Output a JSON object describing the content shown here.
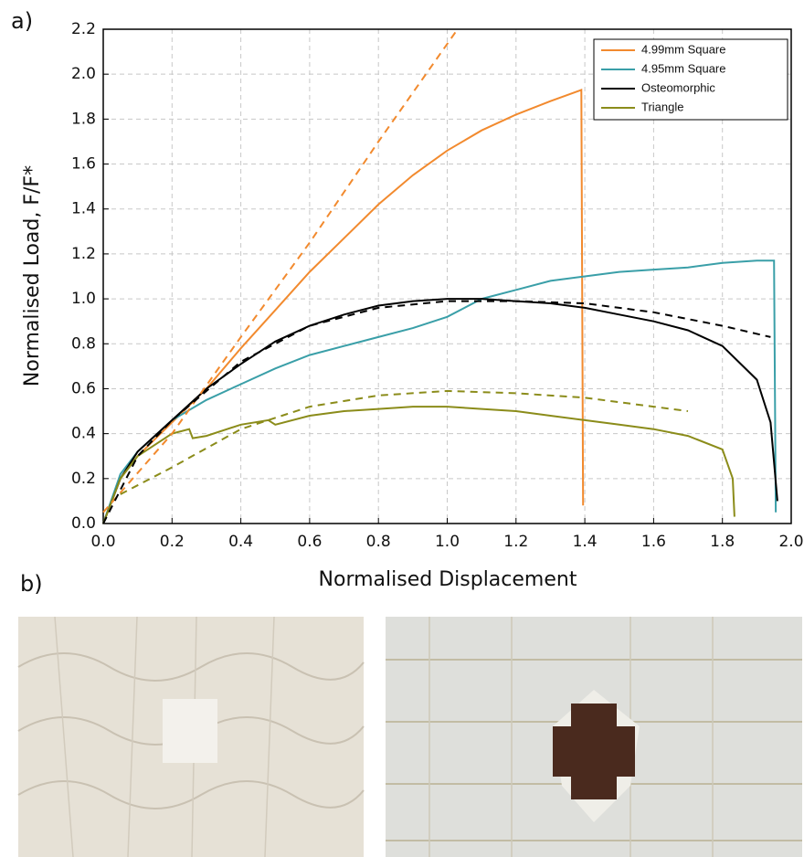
{
  "panels": {
    "a": "a)",
    "b": "b)"
  },
  "chart_data": {
    "type": "line",
    "xlabel": "Normalised Displacement",
    "ylabel": "Normalised Load, F/F*",
    "xlim": [
      0,
      2
    ],
    "ylim": [
      0,
      2.2
    ],
    "xticks": [
      {
        "value": 0,
        "label": "0.0"
      },
      0.2,
      0.4,
      0.6,
      0.8,
      {
        "value": 1,
        "label": "1.0"
      },
      1.2,
      1.4,
      1.6,
      1.8,
      {
        "value": 2,
        "label": "2.0"
      }
    ],
    "yticks": [
      {
        "value": 0,
        "label": "0.0"
      },
      0.2,
      0.4,
      0.6,
      0.8,
      {
        "value": 1,
        "label": "1.0"
      },
      1.2,
      1.4,
      1.6,
      1.8,
      {
        "value": 2,
        "label": "2.0"
      },
      2.2
    ],
    "grid": true,
    "legend": "upper right",
    "series": [
      {
        "name": "4.99mm Square",
        "color": "#f28a2e",
        "x": [
          0,
          0.05,
          0.1,
          0.2,
          0.3,
          0.4,
          0.5,
          0.6,
          0.7,
          0.8,
          0.9,
          1.0,
          1.1,
          1.2,
          1.3,
          1.39,
          1.395
        ],
        "values": [
          0,
          0.2,
          0.3,
          0.45,
          0.6,
          0.78,
          0.95,
          1.12,
          1.27,
          1.42,
          1.55,
          1.66,
          1.75,
          1.82,
          1.88,
          1.93,
          0.08
        ]
      },
      {
        "name": "4.95mm Square",
        "color": "#3a9fa8",
        "x": [
          0,
          0.05,
          0.1,
          0.2,
          0.3,
          0.4,
          0.5,
          0.6,
          0.7,
          0.8,
          0.9,
          1.0,
          1.1,
          1.2,
          1.3,
          1.4,
          1.5,
          1.6,
          1.7,
          1.8,
          1.9,
          1.95,
          1.955
        ],
        "values": [
          0,
          0.22,
          0.32,
          0.46,
          0.55,
          0.62,
          0.69,
          0.75,
          0.79,
          0.83,
          0.87,
          0.92,
          1.0,
          1.04,
          1.08,
          1.1,
          1.12,
          1.13,
          1.14,
          1.16,
          1.17,
          1.17,
          0.05
        ]
      },
      {
        "name": "Osteomorphic",
        "color": "#000000",
        "x": [
          0,
          0.05,
          0.1,
          0.2,
          0.3,
          0.4,
          0.5,
          0.6,
          0.7,
          0.8,
          0.9,
          1.0,
          1.1,
          1.2,
          1.3,
          1.4,
          1.5,
          1.6,
          1.7,
          1.8,
          1.9,
          1.94,
          1.96
        ],
        "values": [
          0,
          0.2,
          0.32,
          0.46,
          0.6,
          0.71,
          0.81,
          0.88,
          0.93,
          0.97,
          0.99,
          1.0,
          1.0,
          0.99,
          0.98,
          0.96,
          0.93,
          0.9,
          0.86,
          0.79,
          0.64,
          0.45,
          0.1
        ]
      },
      {
        "name": "Triangle",
        "color": "#8b8c1a",
        "x": [
          0,
          0.05,
          0.1,
          0.2,
          0.25,
          0.26,
          0.3,
          0.4,
          0.48,
          0.5,
          0.6,
          0.7,
          0.8,
          0.9,
          1.0,
          1.1,
          1.2,
          1.3,
          1.4,
          1.5,
          1.6,
          1.7,
          1.8,
          1.83,
          1.835
        ],
        "values": [
          0,
          0.2,
          0.3,
          0.4,
          0.42,
          0.38,
          0.39,
          0.44,
          0.46,
          0.44,
          0.48,
          0.5,
          0.51,
          0.52,
          0.52,
          0.51,
          0.5,
          0.48,
          0.46,
          0.44,
          0.42,
          0.39,
          0.33,
          0.2,
          0.03
        ]
      },
      {
        "color": "#f28a2e",
        "dashed": true,
        "x": [
          0,
          0.2,
          0.4,
          0.6,
          0.8,
          1.03
        ],
        "values": [
          0.05,
          0.4,
          0.83,
          1.25,
          1.7,
          2.2
        ]
      },
      {
        "color": "#000000",
        "dashed": true,
        "x": [
          0,
          0.1,
          0.2,
          0.4,
          0.6,
          0.8,
          1.0,
          1.2,
          1.4,
          1.6,
          1.8,
          1.94
        ],
        "values": [
          0,
          0.3,
          0.46,
          0.72,
          0.88,
          0.96,
          0.99,
          0.99,
          0.98,
          0.94,
          0.88,
          0.83
        ]
      },
      {
        "color": "#8b8c1a",
        "dashed": true,
        "x": [
          0.05,
          0.2,
          0.4,
          0.6,
          0.8,
          1.0,
          1.2,
          1.4,
          1.6,
          1.7
        ],
        "values": [
          0.13,
          0.25,
          0.42,
          0.52,
          0.57,
          0.59,
          0.58,
          0.56,
          0.52,
          0.5
        ]
      }
    ]
  }
}
